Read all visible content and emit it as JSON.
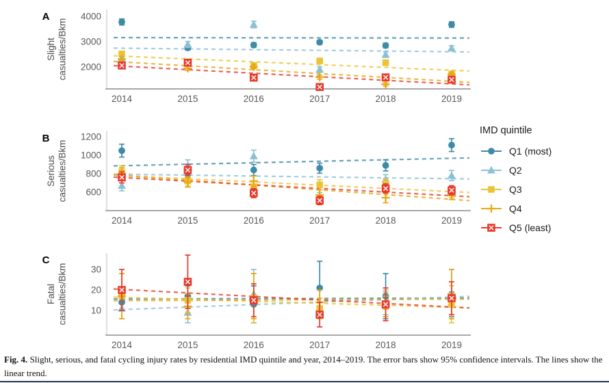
{
  "figure": {
    "caption_label": "Fig. 4.",
    "caption_text": " Slight, serious, and fatal cycling injury rates by residential IMD quintile and year, 2014–2019. The error bars show 95% confidence intervals. The lines show the linear trend."
  },
  "legend": {
    "title": "IMD quintile",
    "items": [
      {
        "label": "Q1 (most)",
        "marker": "circle",
        "color": "#3e8ba8"
      },
      {
        "label": "Q2",
        "marker": "triangle",
        "color": "#8cc1d4"
      },
      {
        "label": "Q3",
        "marker": "square",
        "color": "#eac435"
      },
      {
        "label": "Q4",
        "marker": "plus",
        "color": "#e5a813"
      },
      {
        "label": "Q5 (least)",
        "marker": "boxed-x",
        "color": "#e8392b"
      }
    ]
  },
  "chart_data": [
    {
      "type": "scatter",
      "panel_label": "A",
      "ylabel": "Slight casualties/Bkm",
      "ylabel_lines": [
        "Slight",
        "casualties/Bkm"
      ],
      "x": [
        2014,
        2015,
        2016,
        2017,
        2018,
        2019
      ],
      "yticks": [
        2000,
        3000,
        4000
      ],
      "ylim": [
        1135,
        4270
      ],
      "trend": "linear",
      "legend_position": "right",
      "grid": false,
      "series": [
        {
          "name": "Q1 (most)",
          "marker": "circle",
          "color": "#3e8ba8",
          "values": [
            3780,
            2760,
            2870,
            2980,
            2850,
            3680
          ],
          "ci": [
            120,
            90,
            90,
            80,
            90,
            110
          ]
        },
        {
          "name": "Q2",
          "marker": "triangle",
          "color": "#8cc1d4",
          "values": [
            2340,
            2890,
            3680,
            1900,
            2490,
            2740
          ],
          "ci": [
            140,
            120,
            130,
            110,
            110,
            100
          ]
        },
        {
          "name": "Q3",
          "marker": "square",
          "color": "#eac435",
          "values": [
            2520,
            2200,
            2060,
            2240,
            2170,
            1720
          ],
          "ci": [
            90,
            80,
            80,
            90,
            80,
            80
          ]
        },
        {
          "name": "Q4",
          "marker": "plus",
          "color": "#e5a813",
          "values": [
            2320,
            1950,
            2010,
            1600,
            1320,
            1710
          ],
          "ci": [
            90,
            80,
            80,
            80,
            70,
            80
          ]
        },
        {
          "name": "Q5 (least)",
          "marker": "boxed-x",
          "color": "#e8392b",
          "values": [
            2060,
            2170,
            1580,
            1210,
            1590,
            1500
          ],
          "ci": [
            90,
            90,
            80,
            70,
            80,
            80
          ]
        }
      ]
    },
    {
      "type": "scatter",
      "panel_label": "B",
      "ylabel": "Serious casualties/Bkm",
      "ylabel_lines": [
        "Serious",
        "casualties/Bkm"
      ],
      "x": [
        2014,
        2015,
        2016,
        2017,
        2018,
        2019
      ],
      "yticks": [
        600,
        800,
        1000,
        1200
      ],
      "ylim": [
        400,
        1259
      ],
      "trend": "linear",
      "grid": false,
      "series": [
        {
          "name": "Q1 (most)",
          "marker": "circle",
          "color": "#3e8ba8",
          "values": [
            1050,
            810,
            840,
            860,
            890,
            1110
          ],
          "ci": [
            70,
            55,
            60,
            55,
            60,
            70
          ]
        },
        {
          "name": "Q2",
          "marker": "triangle",
          "color": "#8cc1d4",
          "values": [
            670,
            890,
            990,
            550,
            740,
            780
          ],
          "ci": [
            55,
            60,
            65,
            45,
            50,
            55
          ]
        },
        {
          "name": "Q3",
          "marker": "square",
          "color": "#eac435",
          "values": [
            820,
            720,
            660,
            680,
            690,
            590
          ],
          "ci": [
            65,
            55,
            55,
            55,
            55,
            50
          ]
        },
        {
          "name": "Q4",
          "marker": "plus",
          "color": "#e5a813",
          "values": [
            800,
            710,
            720,
            570,
            540,
            570
          ],
          "ci": [
            65,
            55,
            55,
            55,
            55,
            50
          ]
        },
        {
          "name": "Q5 (least)",
          "marker": "boxed-x",
          "color": "#e8392b",
          "values": [
            760,
            840,
            590,
            510,
            640,
            620
          ],
          "ci": [
            60,
            60,
            50,
            45,
            50,
            50
          ]
        }
      ]
    },
    {
      "type": "scatter",
      "panel_label": "C",
      "ylabel": "Fatal casualties/Bkm",
      "ylabel_lines": [
        "Fatal",
        "casualties/Bkm"
      ],
      "x": [
        2014,
        2015,
        2016,
        2017,
        2018,
        2019
      ],
      "yticks": [
        10,
        20,
        30
      ],
      "ylim": [
        -2,
        38
      ],
      "trend": "linear",
      "grid": false,
      "series": [
        {
          "name": "Q1 (most)",
          "marker": "circle",
          "color": "#3e8ba8",
          "values": [
            14,
            17,
            13,
            21,
            17,
            13
          ],
          "ci": [
            4,
            5,
            9,
            13,
            11,
            6
          ]
        },
        {
          "name": "Q2",
          "marker": "triangle",
          "color": "#8cc1d4",
          "values": [
            11,
            9,
            18,
            11,
            14,
            18
          ],
          "ci": [
            5,
            5,
            12,
            5,
            6,
            12
          ]
        },
        {
          "name": "Q3",
          "marker": "square",
          "color": "#eac435",
          "values": [
            17,
            15,
            16,
            11,
            12,
            13
          ],
          "ci": [
            11,
            6,
            12,
            5,
            5,
            9
          ]
        },
        {
          "name": "Q4",
          "marker": "plus",
          "color": "#e5a813",
          "values": [
            17,
            12,
            17,
            14,
            13,
            18
          ],
          "ci": [
            11,
            6,
            11,
            6,
            6,
            12
          ]
        },
        {
          "name": "Q5 (least)",
          "marker": "boxed-x",
          "color": "#e8392b",
          "values": [
            20,
            24,
            15,
            8,
            13,
            16
          ],
          "ci": [
            10,
            13,
            8,
            6,
            8,
            8
          ]
        }
      ]
    }
  ]
}
